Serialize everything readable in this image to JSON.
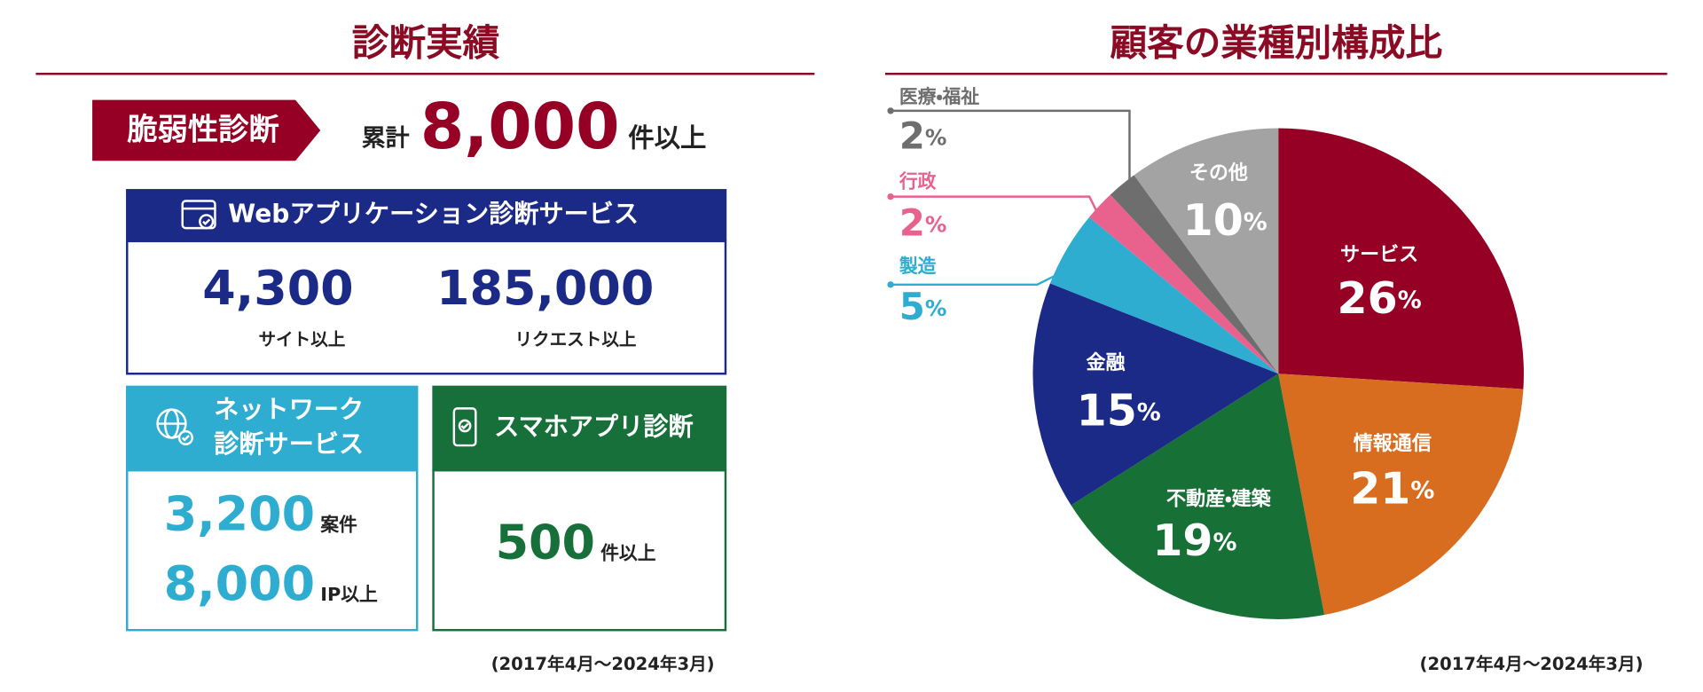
{
  "results": {
    "title": "診断実績",
    "banner": "脆弱性診断",
    "total_prefix": "累計",
    "total_value": "8,000",
    "total_unit": "件以上",
    "web": {
      "title": "Webアプリケーション診断サービス",
      "items": [
        {
          "value": "4,300",
          "unit": "サイト以上"
        },
        {
          "value": "185,000",
          "unit": "リクエスト以上"
        }
      ]
    },
    "network": {
      "title_lines": [
        "ネットワーク",
        "診断サービス"
      ],
      "items": [
        {
          "value": "3,200",
          "unit": "案件"
        },
        {
          "value": "8,000",
          "unit": "IP以上"
        }
      ]
    },
    "mobile": {
      "title": "スマホアプリ診断",
      "items": [
        {
          "value": "500",
          "unit": "件以上"
        }
      ]
    },
    "period": "(2017年4月〜2024年3月)"
  },
  "chart_data": {
    "type": "pie",
    "title": "顧客の業種別構成比",
    "categories": [
      "サービス",
      "情報通信",
      "不動産・建築",
      "金融",
      "製造",
      "行政",
      "医療・福祉",
      "その他"
    ],
    "values": [
      26,
      21,
      19,
      15,
      5,
      2,
      2,
      10
    ],
    "colors": [
      "#950024",
      "#d86c1f",
      "#177137",
      "#1b2a86",
      "#2eadd0",
      "#e9618d",
      "#6e6e6e",
      "#a3a3a3"
    ],
    "unit": "%",
    "note": "(2017年4月〜2024年3月)"
  }
}
